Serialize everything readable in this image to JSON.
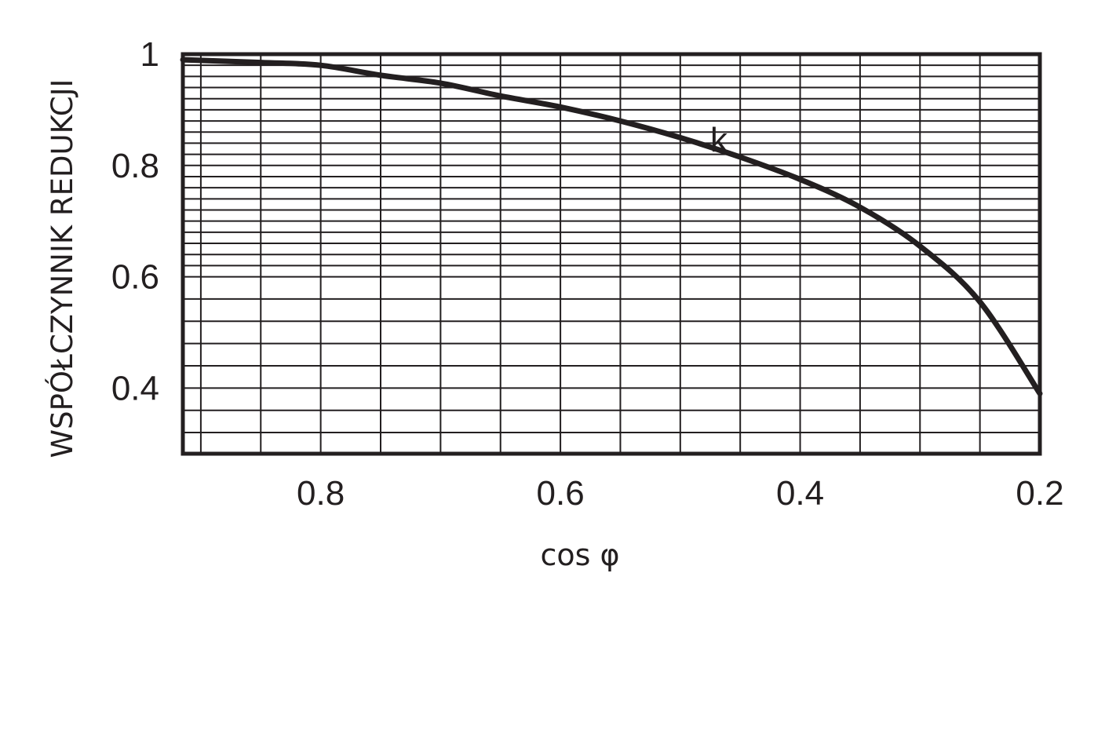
{
  "chart_data": {
    "type": "line",
    "xlabel": "cos φ",
    "ylabel": "WSPÓŁCZYNNIK REDUKCJI",
    "x_reversed": true,
    "xlim": [
      0.915,
      0.2
    ],
    "ylim": [
      0.282,
      1.0
    ],
    "x_ticks": [
      {
        "value": 0.8,
        "label": "0.8"
      },
      {
        "value": 0.6,
        "label": "0.6"
      },
      {
        "value": 0.4,
        "label": "0.4"
      },
      {
        "value": 0.2,
        "label": "0.2"
      }
    ],
    "y_ticks": [
      {
        "value": 1.0,
        "label": "1"
      },
      {
        "value": 0.8,
        "label": "0.8"
      },
      {
        "value": 0.6,
        "label": "0.6"
      },
      {
        "value": 0.4,
        "label": "0.4"
      }
    ],
    "grid": true,
    "grid_x": [
      0.9,
      0.85,
      0.8,
      0.75,
      0.7,
      0.65,
      0.6,
      0.55,
      0.5,
      0.45,
      0.4,
      0.35,
      0.3,
      0.25
    ],
    "grid_y": [
      0.98,
      0.96,
      0.94,
      0.92,
      0.9,
      0.88,
      0.86,
      0.84,
      0.82,
      0.8,
      0.78,
      0.76,
      0.74,
      0.72,
      0.7,
      0.68,
      0.66,
      0.64,
      0.62,
      0.6,
      0.56,
      0.52,
      0.48,
      0.44,
      0.4,
      0.36,
      0.32
    ],
    "series": [
      {
        "name": "k",
        "color": "#231f20",
        "points": [
          {
            "x": 0.915,
            "y": 0.99
          },
          {
            "x": 0.85,
            "y": 0.985
          },
          {
            "x": 0.8,
            "y": 0.98
          },
          {
            "x": 0.75,
            "y": 0.962
          },
          {
            "x": 0.7,
            "y": 0.948
          },
          {
            "x": 0.65,
            "y": 0.925
          },
          {
            "x": 0.6,
            "y": 0.905
          },
          {
            "x": 0.55,
            "y": 0.88
          },
          {
            "x": 0.5,
            "y": 0.85
          },
          {
            "x": 0.45,
            "y": 0.815
          },
          {
            "x": 0.4,
            "y": 0.775
          },
          {
            "x": 0.35,
            "y": 0.725
          },
          {
            "x": 0.3,
            "y": 0.655
          },
          {
            "x": 0.25,
            "y": 0.555
          },
          {
            "x": 0.2,
            "y": 0.39
          }
        ]
      }
    ]
  }
}
